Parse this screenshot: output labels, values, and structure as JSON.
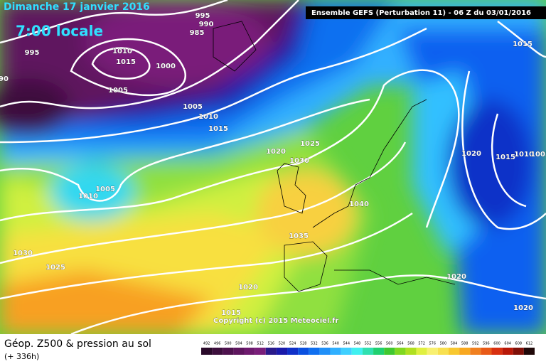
{
  "header": {
    "date": "Dimanche 17 janvier 2016",
    "time": "7:00 locale",
    "run": "Ensemble GEFS  (Perturbation 11)  -  06 Z du 03/01/2016"
  },
  "isobars": [
    "995",
    "990",
    "985",
    "995",
    "1010",
    "1015",
    "1000",
    "1005",
    "1005",
    "1010",
    "1015",
    "1020",
    "1025",
    "1030",
    "1010",
    "1005",
    "1040",
    "1035",
    "1030",
    "1025",
    "1020",
    "1015",
    "1020",
    "1015",
    "1010",
    "1005",
    "1015",
    "1020",
    "1020",
    "90"
  ],
  "copyright": "Copyright (c) 2015 Meteociel.fr",
  "footer": {
    "title": "Géop. Z500 & pression au sol",
    "lead": "(+ 336h)"
  },
  "colorbar": {
    "values": [
      492,
      496,
      500,
      504,
      508,
      512,
      516,
      520,
      524,
      528,
      532,
      536,
      540,
      544,
      548,
      552,
      556,
      560,
      564,
      568,
      572,
      576,
      580,
      584,
      588,
      592,
      596,
      600,
      604,
      608,
      612
    ],
    "colors": [
      "#2a0a2a",
      "#3d0f3d",
      "#4e124e",
      "#5e165e",
      "#6e1a6e",
      "#7a1e7a",
      "#2a1a8a",
      "#1a1aaa",
      "#1030c8",
      "#0a50e0",
      "#1070f0",
      "#2090f8",
      "#30b0ff",
      "#40d0ff",
      "#40f0f0",
      "#30e0b0",
      "#20d070",
      "#40c830",
      "#80d820",
      "#b0e020",
      "#e0f040",
      "#f8f070",
      "#f8e050",
      "#f8c830",
      "#f8a820",
      "#f08020",
      "#e85a18",
      "#d83010",
      "#b81808",
      "#801008",
      "#200808"
    ]
  }
}
